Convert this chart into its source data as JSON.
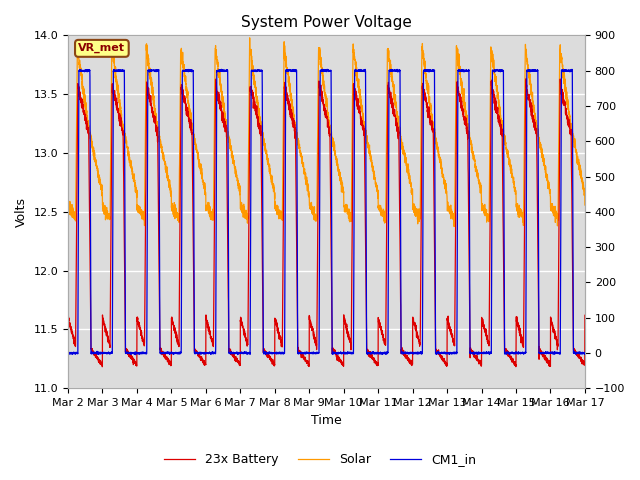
{
  "title": "System Power Voltage",
  "ylabel_left": "Volts",
  "xlabel": "Time",
  "ylim_left": [
    11.0,
    14.0
  ],
  "ylim_right": [
    -100,
    900
  ],
  "x_labels": [
    "Mar 2",
    "Mar 3",
    "Mar 4",
    "Mar 5",
    "Mar 6",
    "Mar 7",
    "Mar 8",
    "Mar 9",
    "Mar 10",
    "Mar 11",
    "Mar 12",
    "Mar 13",
    "Mar 14",
    "Mar 15",
    "Mar 16",
    "Mar 17"
  ],
  "annotation_text": "VR_met",
  "legend_labels": [
    "23x Battery",
    "Solar",
    "CM1_in"
  ],
  "line_colors": [
    "#dd0000",
    "#ff9900",
    "#0000dd"
  ],
  "background_color": "#dcdcdc",
  "num_days": 15,
  "points_per_day": 288
}
